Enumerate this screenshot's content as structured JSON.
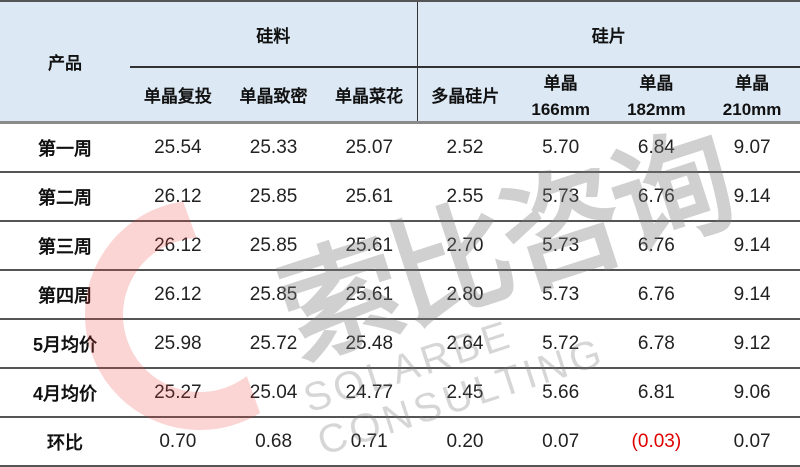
{
  "header": {
    "product": "产品",
    "group1": "硅料",
    "group2": "硅片",
    "columns": [
      {
        "line1": "单晶复投",
        "line2": ""
      },
      {
        "line1": "单晶致密",
        "line2": ""
      },
      {
        "line1": "单晶菜花",
        "line2": ""
      },
      {
        "line1": "多晶硅片",
        "line2": ""
      },
      {
        "line1": "单晶",
        "line2": "166mm"
      },
      {
        "line1": "单晶",
        "line2": "182mm"
      },
      {
        "line1": "单晶",
        "line2": "210mm"
      }
    ]
  },
  "rows": [
    {
      "label": "第一周",
      "values": [
        "25.54",
        "25.33",
        "25.07",
        "2.52",
        "5.70",
        "6.84",
        "9.07"
      ]
    },
    {
      "label": "第二周",
      "values": [
        "26.12",
        "25.85",
        "25.61",
        "2.55",
        "5.73",
        "6.76",
        "9.14"
      ]
    },
    {
      "label": "第三周",
      "values": [
        "26.12",
        "25.85",
        "25.61",
        "2.70",
        "5.73",
        "6.76",
        "9.14"
      ]
    },
    {
      "label": "第四周",
      "values": [
        "26.12",
        "25.85",
        "25.61",
        "2.80",
        "5.73",
        "6.76",
        "9.14"
      ]
    },
    {
      "label": "5月均价",
      "values": [
        "25.98",
        "25.72",
        "25.48",
        "2.64",
        "5.72",
        "6.78",
        "9.12"
      ]
    },
    {
      "label": "4月均价",
      "values": [
        "25.27",
        "25.04",
        "24.77",
        "2.45",
        "5.66",
        "6.81",
        "9.06"
      ]
    },
    {
      "label": "环比",
      "values": [
        "0.70",
        "0.68",
        "0.71",
        "0.20",
        "0.07",
        "(0.03)",
        "0.07"
      ]
    }
  ],
  "negative_color": "#e00000",
  "header_bg": "#dce9f5",
  "watermark": {
    "cn": "索比咨询",
    "en": "SOLARBE CONSULTING"
  }
}
